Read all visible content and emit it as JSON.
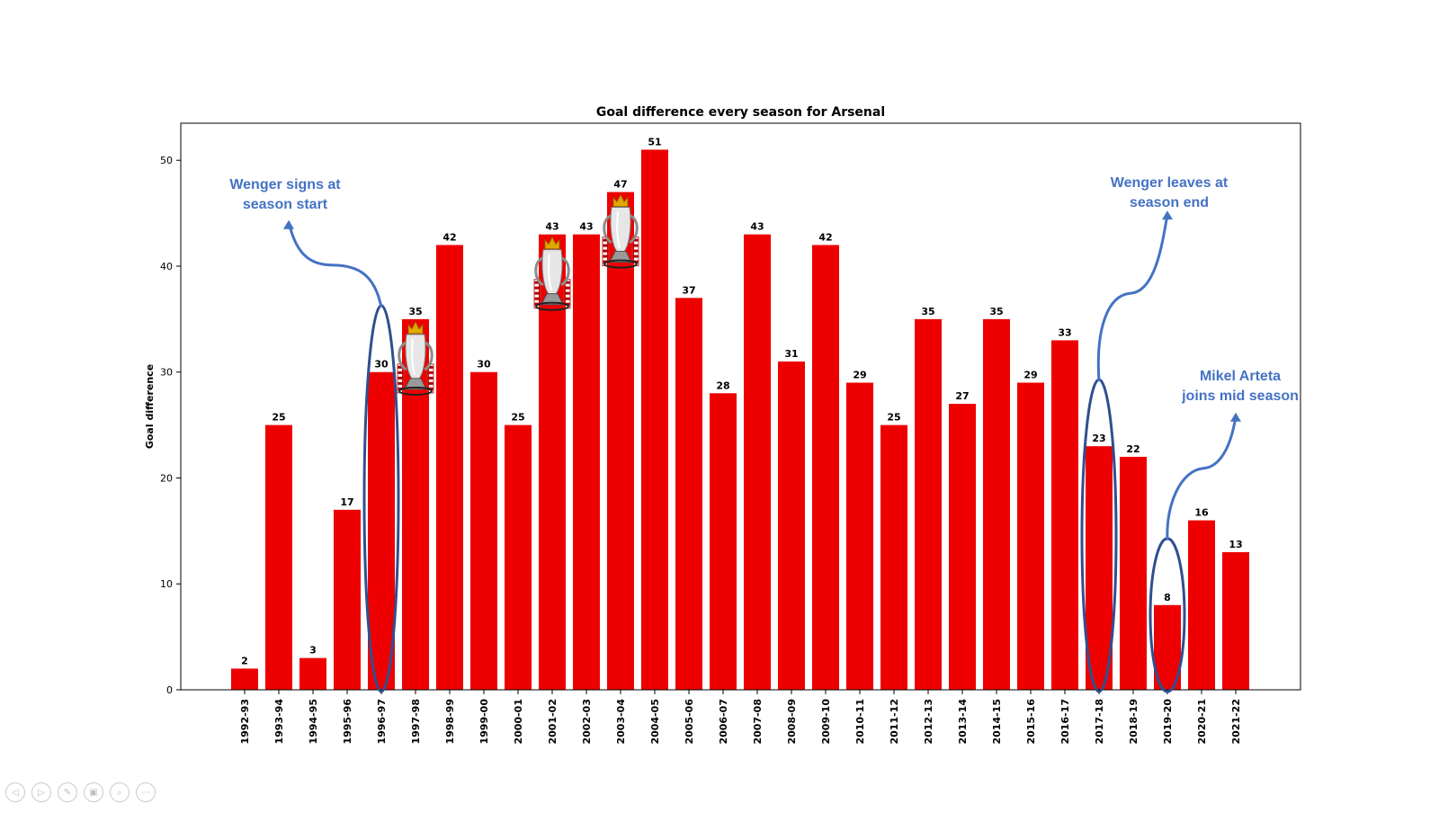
{
  "chart_data": {
    "type": "bar",
    "title": "Goal difference every season for Arsenal",
    "xlabel": "",
    "ylabel": "Goal difference",
    "ylim": [
      0,
      53.5
    ],
    "yticks": [
      0,
      10,
      20,
      30,
      40,
      50
    ],
    "grid": false,
    "bar_color": "#ee0000",
    "categories": [
      "1992-93",
      "1993-94",
      "1994-95",
      "1995-96",
      "1996-97",
      "1997-98",
      "1998-99",
      "1999-00",
      "2000-01",
      "2001-02",
      "2002-03",
      "2003-04",
      "2004-05",
      "2005-06",
      "2006-07",
      "2007-08",
      "2008-09",
      "2009-10",
      "2010-11",
      "2011-12",
      "2012-13",
      "2013-14",
      "2014-15",
      "2015-16",
      "2016-17",
      "2017-18",
      "2018-19",
      "2019-20",
      "2020-21",
      "2021-22"
    ],
    "values": [
      2,
      25,
      3,
      17,
      30,
      35,
      42,
      30,
      25,
      43,
      43,
      47,
      51,
      37,
      28,
      43,
      31,
      42,
      29,
      25,
      35,
      27,
      35,
      29,
      33,
      23,
      22,
      8,
      16,
      13
    ],
    "trophy_seasons": [
      "1997-98",
      "2001-02",
      "2003-04"
    ],
    "highlighted_seasons": [
      "1996-97",
      "2017-18",
      "2019-20"
    ],
    "annotations": [
      {
        "lines": [
          "Wenger signs at",
          "season start"
        ],
        "season": "1996-97"
      },
      {
        "lines": [
          "Wenger leaves at",
          "season end"
        ],
        "season": "2017-18"
      },
      {
        "lines": [
          "Mikel Arteta",
          "joins mid season"
        ],
        "season": "2019-20"
      }
    ],
    "annotation_color": "#4472c4",
    "ellipse_color": "#2f4f8f"
  },
  "toolbar": {
    "icons": [
      "previous-icon",
      "next-icon",
      "pen-icon",
      "slides-icon",
      "zoom-icon",
      "more-icon"
    ],
    "glyphs": [
      "◁",
      "▷",
      "✎",
      "▣",
      "⌕",
      "⋯"
    ]
  }
}
